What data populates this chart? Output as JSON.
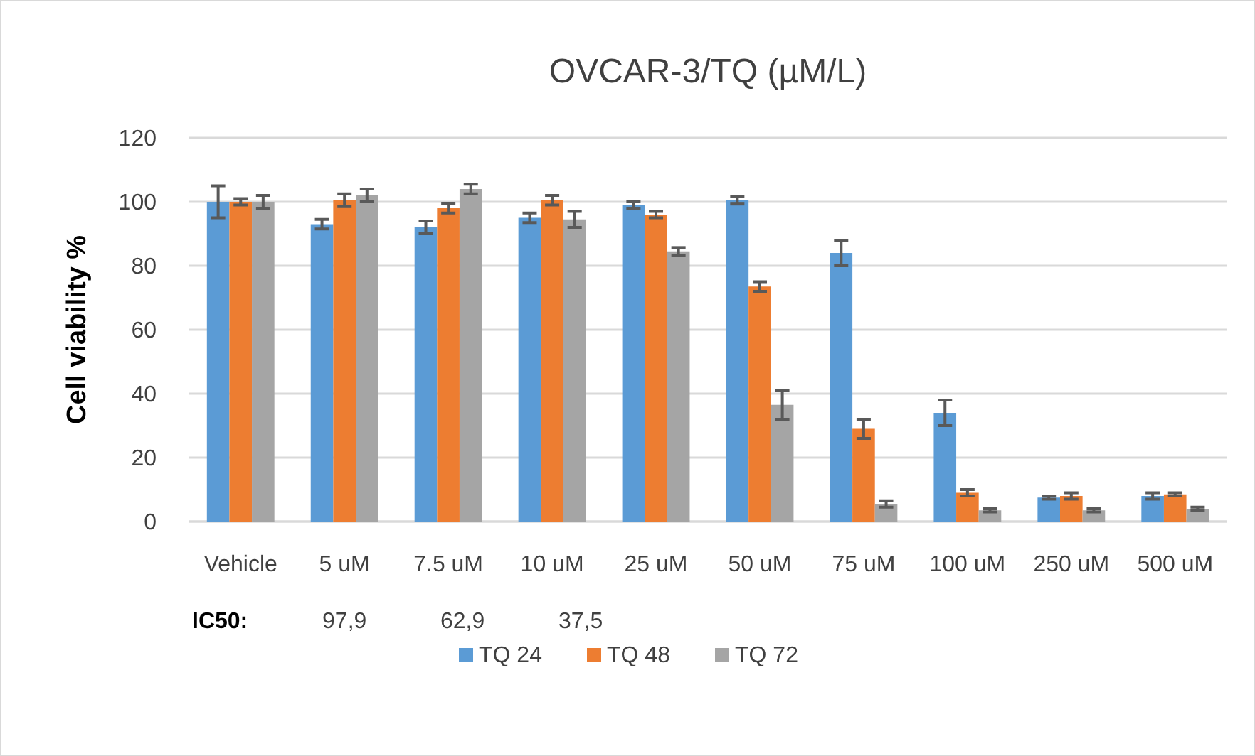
{
  "chart_data": {
    "type": "bar",
    "title": "OVCAR-3/TQ (µM/L)",
    "ylabel": "Cell viability %",
    "categories": [
      "Vehicle",
      "5 uM",
      "7.5 uM",
      "10 uM",
      "25 uM",
      "50 uM",
      "75 uM",
      "100 uM",
      "250 uM",
      "500 uM"
    ],
    "series": [
      {
        "name": "TQ 24",
        "color": "#5b9bd5",
        "values": [
          100,
          93,
          92,
          95,
          99,
          100.5,
          84,
          34,
          7.5,
          8
        ],
        "errors": [
          5,
          1.5,
          2,
          1.5,
          1,
          1.2,
          4,
          4,
          0.5,
          1
        ]
      },
      {
        "name": "TQ 48",
        "color": "#ed7d31",
        "values": [
          100,
          100.5,
          98,
          100.5,
          96,
          73.5,
          29,
          9,
          8,
          8.5
        ],
        "errors": [
          1,
          2,
          1.5,
          1.5,
          1,
          1.5,
          3,
          1,
          1,
          0.5
        ]
      },
      {
        "name": "TQ 72",
        "color": "#a5a5a5",
        "values": [
          100,
          102,
          104,
          94.5,
          84.5,
          36.5,
          5.5,
          3.5,
          3.5,
          4
        ],
        "errors": [
          2,
          2,
          1.5,
          2.5,
          1.2,
          4.5,
          1,
          0.5,
          0.5,
          0.5
        ]
      }
    ],
    "ylim": [
      0,
      120
    ],
    "yticks": [
      0,
      20,
      40,
      60,
      80,
      100,
      120
    ],
    "grid": "y",
    "legend": "bottom",
    "annotations": [
      "IC50:",
      "97,9",
      "62,9",
      "37,5"
    ]
  }
}
